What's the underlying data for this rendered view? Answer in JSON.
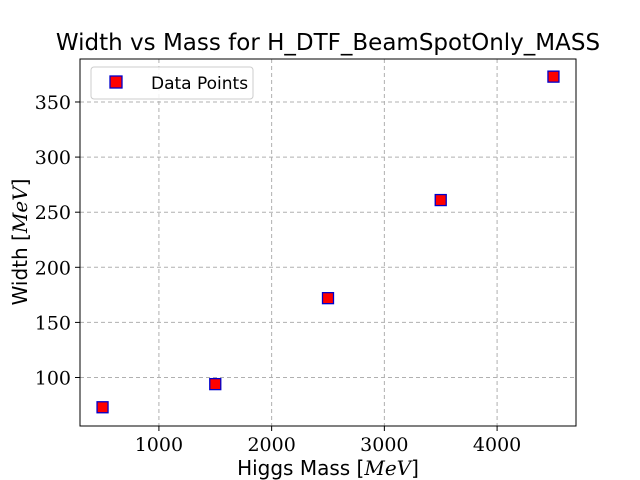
{
  "chart_data": {
    "type": "scatter",
    "title": "Width vs Mass for H_DTF_BeamSpotOnly_MASS",
    "xlabel": "Higgs Mass [MeV]",
    "xlabel_main": "Higgs Mass ",
    "xlabel_unit": "MeV",
    "ylabel": "Width [MeV]",
    "ylabel_main": "Width ",
    "ylabel_unit": "MeV",
    "xlim": [
      300,
      4700
    ],
    "ylim": [
      56,
      389
    ],
    "xticks": [
      1000,
      2000,
      3000,
      4000
    ],
    "yticks": [
      100,
      150,
      200,
      250,
      300,
      350
    ],
    "grid": true,
    "legend_position": "top-left",
    "series": [
      {
        "name": "Data Points",
        "marker": "square",
        "fill_color": "#ff0000",
        "edge_color": "#0000cc",
        "x": [
          500,
          1500,
          2500,
          3500,
          4500
        ],
        "y": [
          73,
          94,
          172,
          261,
          373
        ]
      }
    ]
  }
}
